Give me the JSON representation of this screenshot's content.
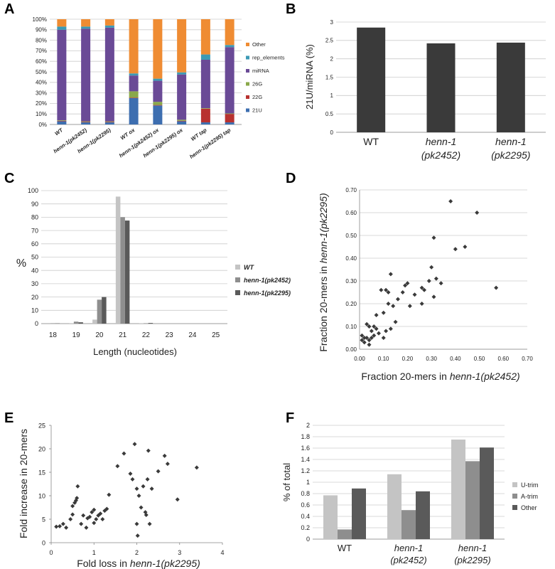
{
  "panels": [
    "A",
    "B",
    "C",
    "D",
    "E",
    "F"
  ],
  "chart_data": [
    {
      "id": "A",
      "type": "bar",
      "stacked": true,
      "categories": [
        "WT",
        "henn-1(pk2452)",
        "henn-1(pk2295)",
        "WT ox",
        "henn-1(pk2452) ox",
        "henn-1(pk2295) ox",
        "WT tap",
        "henn-1(pk2295) tap"
      ],
      "yticks": [
        "0%",
        "10%",
        "20%",
        "30%",
        "40%",
        "50%",
        "60%",
        "70%",
        "80%",
        "90%",
        "100%"
      ],
      "ylim": [
        0,
        100
      ],
      "series": [
        {
          "name": "21U",
          "color": "#3d6eb0",
          "values": [
            3,
            2,
            2,
            25,
            18,
            3,
            2,
            2
          ]
        },
        {
          "name": "22G",
          "color": "#b83230",
          "values": [
            0.5,
            0.5,
            0.5,
            0.5,
            0.5,
            0.5,
            13,
            8
          ]
        },
        {
          "name": "26G",
          "color": "#8aa84a",
          "values": [
            0.5,
            0.5,
            0.5,
            6,
            3,
            1,
            0.5,
            0.5
          ]
        },
        {
          "name": "miRNA",
          "color": "#6a4a96",
          "values": [
            86,
            88,
            89,
            15,
            20,
            43,
            46,
            63
          ]
        },
        {
          "name": "rep_elements",
          "color": "#3c9ab5",
          "values": [
            3,
            2,
            2,
            2,
            2,
            2,
            5,
            2
          ]
        },
        {
          "name": "Other",
          "color": "#ef8c33",
          "values": [
            7,
            7,
            6,
            51.5,
            56.5,
            50.5,
            33.5,
            24.5
          ]
        }
      ],
      "legend": "right",
      "grid": true
    },
    {
      "id": "B",
      "type": "bar",
      "categories": [
        "WT",
        "henn-1 (pk2452)",
        "henn-1 (pk2295)"
      ],
      "category_lines": [
        [
          "WT"
        ],
        [
          "henn-1",
          "(pk2452)"
        ],
        [
          "henn-1",
          "(pk2295)"
        ]
      ],
      "values": [
        2.85,
        2.42,
        2.44
      ],
      "ylabel": "21U/miRNA (%)",
      "yticks": [
        "0",
        "0.5",
        "1",
        "1.5",
        "2",
        "2.5",
        "3"
      ],
      "ylim": [
        0,
        3
      ],
      "color": "#3a3a3a",
      "grid": true
    },
    {
      "id": "C",
      "type": "bar",
      "categories": [
        "18",
        "19",
        "20",
        "21",
        "22",
        "23",
        "24",
        "25"
      ],
      "series": [
        {
          "name": "WT",
          "color": "#c4c4c4",
          "values": [
            0,
            0.2,
            3,
            95.5,
            0.2,
            0,
            0,
            0
          ]
        },
        {
          "name": "henn-1(pk2452)",
          "color": "#8e8e8e",
          "values": [
            0.3,
            1.5,
            18,
            80,
            0.3,
            0,
            0,
            0
          ]
        },
        {
          "name": "henn-1(pk2295)",
          "color": "#5a5a5a",
          "values": [
            0.2,
            1,
            20,
            77.5,
            0.5,
            0,
            0,
            0
          ]
        }
      ],
      "xlabel": "Length (nucleotides)",
      "ylabel": "%",
      "yticks": [
        "0",
        "10",
        "20",
        "30",
        "40",
        "50",
        "60",
        "70",
        "80",
        "90",
        "100"
      ],
      "ylim": [
        0,
        100
      ],
      "legend": "right",
      "grid": true
    },
    {
      "id": "D",
      "type": "scatter",
      "xlabel_prefix": "Fraction 20-mers in ",
      "xlabel_italic": "henn-1(pk2452)",
      "ylabel_prefix": "Fraction 20-mers in ",
      "ylabel_italic": "henn-1(pk2295)",
      "xticks": [
        "0.00",
        "0.10",
        "0.20",
        "0.30",
        "0.40",
        "0.50",
        "0.60",
        "0.70"
      ],
      "yticks": [
        "0.00",
        "0.10",
        "0.20",
        "0.30",
        "0.40",
        "0.50",
        "0.60",
        "0.70"
      ],
      "xlim": [
        0,
        0.7
      ],
      "ylim": [
        0,
        0.7
      ],
      "grid": true,
      "points": [
        [
          0.01,
          0.04
        ],
        [
          0.01,
          0.06
        ],
        [
          0.02,
          0.05
        ],
        [
          0.02,
          0.03
        ],
        [
          0.03,
          0.05
        ],
        [
          0.03,
          0.11
        ],
        [
          0.04,
          0.04
        ],
        [
          0.04,
          0.02
        ],
        [
          0.04,
          0.1
        ],
        [
          0.05,
          0.05
        ],
        [
          0.05,
          0.08
        ],
        [
          0.06,
          0.06
        ],
        [
          0.06,
          0.1
        ],
        [
          0.07,
          0.15
        ],
        [
          0.07,
          0.09
        ],
        [
          0.08,
          0.07
        ],
        [
          0.09,
          0.26
        ],
        [
          0.1,
          0.05
        ],
        [
          0.1,
          0.16
        ],
        [
          0.11,
          0.26
        ],
        [
          0.11,
          0.08
        ],
        [
          0.12,
          0.2
        ],
        [
          0.12,
          0.25
        ],
        [
          0.13,
          0.33
        ],
        [
          0.13,
          0.09
        ],
        [
          0.14,
          0.19
        ],
        [
          0.15,
          0.12
        ],
        [
          0.16,
          0.22
        ],
        [
          0.18,
          0.25
        ],
        [
          0.19,
          0.28
        ],
        [
          0.2,
          0.29
        ],
        [
          0.21,
          0.19
        ],
        [
          0.23,
          0.24
        ],
        [
          0.26,
          0.2
        ],
        [
          0.26,
          0.27
        ],
        [
          0.27,
          0.26
        ],
        [
          0.29,
          0.3
        ],
        [
          0.3,
          0.36
        ],
        [
          0.31,
          0.23
        ],
        [
          0.31,
          0.49
        ],
        [
          0.32,
          0.31
        ],
        [
          0.34,
          0.29
        ],
        [
          0.38,
          0.65
        ],
        [
          0.4,
          0.44
        ],
        [
          0.44,
          0.45
        ],
        [
          0.49,
          0.6
        ],
        [
          0.57,
          0.27
        ]
      ]
    },
    {
      "id": "E",
      "type": "scatter",
      "xlabel_prefix": "Fold loss in ",
      "xlabel_italic": "henn-1(pk2295)",
      "ylabel": "Fold increase in 20-mers",
      "xticks": [
        "0",
        "1",
        "2",
        "3",
        "4"
      ],
      "yticks": [
        "0",
        "5",
        "10",
        "15",
        "20",
        "25"
      ],
      "xlim": [
        0,
        4
      ],
      "ylim": [
        0,
        25
      ],
      "grid": false,
      "points": [
        [
          0.12,
          3.4
        ],
        [
          0.2,
          3.5
        ],
        [
          0.28,
          4
        ],
        [
          0.35,
          3.2
        ],
        [
          0.45,
          5
        ],
        [
          0.5,
          6
        ],
        [
          0.5,
          7.8
        ],
        [
          0.55,
          8.5
        ],
        [
          0.58,
          9
        ],
        [
          0.6,
          9.5
        ],
        [
          0.62,
          12
        ],
        [
          0.7,
          4
        ],
        [
          0.75,
          5.8
        ],
        [
          0.82,
          3.2
        ],
        [
          0.85,
          5.2
        ],
        [
          0.9,
          5.5
        ],
        [
          0.95,
          6.5
        ],
        [
          1.0,
          7
        ],
        [
          1.0,
          4.2
        ],
        [
          1.05,
          5
        ],
        [
          1.1,
          5.8
        ],
        [
          1.15,
          6.2
        ],
        [
          1.2,
          5
        ],
        [
          1.25,
          6.8
        ],
        [
          1.3,
          7.2
        ],
        [
          1.35,
          10.2
        ],
        [
          1.55,
          16.3
        ],
        [
          1.7,
          19
        ],
        [
          1.85,
          14.7
        ],
        [
          1.9,
          13.5
        ],
        [
          1.95,
          21
        ],
        [
          2.0,
          11.5
        ],
        [
          2.0,
          4
        ],
        [
          2.02,
          1.5
        ],
        [
          2.05,
          10
        ],
        [
          2.1,
          7.5
        ],
        [
          2.15,
          12
        ],
        [
          2.2,
          6.5
        ],
        [
          2.22,
          5.9
        ],
        [
          2.25,
          13.5
        ],
        [
          2.27,
          19.6
        ],
        [
          2.3,
          4
        ],
        [
          2.35,
          11.5
        ],
        [
          2.5,
          15.2
        ],
        [
          2.65,
          18.5
        ],
        [
          2.72,
          16.8
        ],
        [
          2.95,
          9.2
        ],
        [
          3.4,
          16
        ]
      ]
    },
    {
      "id": "F",
      "type": "bar",
      "categories": [
        "WT",
        "henn-1 (pk2452)",
        "henn-1 (pk2295)"
      ],
      "category_lines": [
        [
          "WT"
        ],
        [
          "henn-1",
          "(pk2452)"
        ],
        [
          "henn-1",
          "(pk2295)"
        ]
      ],
      "series": [
        {
          "name": "U-trim",
          "color": "#c4c4c4",
          "values": [
            0.77,
            1.14,
            1.75
          ]
        },
        {
          "name": "A-trim",
          "color": "#8e8e8e",
          "values": [
            0.17,
            0.51,
            1.37
          ]
        },
        {
          "name": "Other",
          "color": "#5a5a5a",
          "values": [
            0.89,
            0.84,
            1.61
          ]
        }
      ],
      "ylabel": "% of total",
      "yticks": [
        "0",
        "0.2",
        "0.4",
        "0.6",
        "0.8",
        "1",
        "1.2",
        "1.4",
        "1.6",
        "1.8",
        "2"
      ],
      "ylim": [
        0,
        2
      ],
      "legend": "right",
      "grid": true
    }
  ]
}
